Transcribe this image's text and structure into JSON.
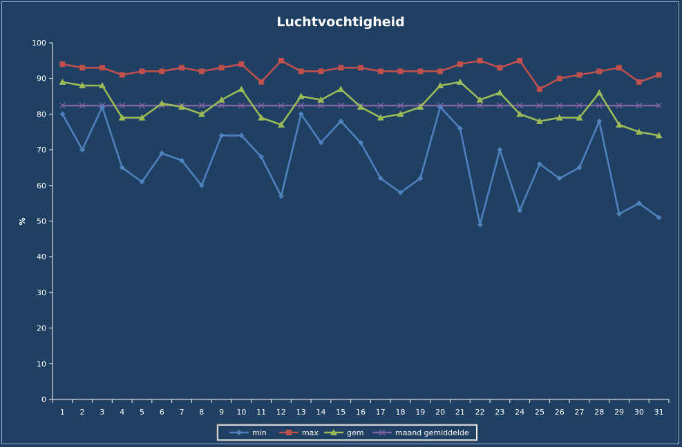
{
  "chart_data": {
    "type": "line",
    "title": "Luchtvochtigheid",
    "xlabel": "",
    "ylabel": "%",
    "ylim": [
      0,
      100
    ],
    "yticks": [
      0,
      10,
      20,
      30,
      40,
      50,
      60,
      70,
      80,
      90,
      100
    ],
    "categories": [
      "1",
      "2",
      "3",
      "4",
      "5",
      "6",
      "7",
      "8",
      "9",
      "10",
      "11",
      "12",
      "13",
      "14",
      "15",
      "16",
      "17",
      "18",
      "19",
      "20",
      "21",
      "22",
      "23",
      "24",
      "25",
      "26",
      "27",
      "28",
      "29",
      "30",
      "31"
    ],
    "grid": false,
    "legend": "bottom",
    "series": [
      {
        "name": "min",
        "color": "#4f81bd",
        "marker": "diamond",
        "values": [
          80,
          70,
          82,
          65,
          61,
          69,
          67,
          60,
          74,
          74,
          68,
          57,
          80,
          72,
          78,
          72,
          62,
          58,
          62,
          82,
          76,
          49,
          70,
          53,
          66,
          62,
          65,
          78,
          52,
          55,
          51
        ]
      },
      {
        "name": "max",
        "color": "#c0504d",
        "marker": "square",
        "values": [
          94,
          93,
          93,
          91,
          92,
          92,
          93,
          92,
          93,
          94,
          89,
          95,
          92,
          92,
          93,
          93,
          92,
          92,
          92,
          92,
          94,
          95,
          93,
          95,
          87,
          90,
          91,
          92,
          93,
          89,
          91
        ]
      },
      {
        "name": "gem",
        "color": "#9bbb59",
        "marker": "triangle",
        "values": [
          89,
          88,
          88,
          79,
          79,
          83,
          82,
          80,
          84,
          87,
          79,
          77,
          85,
          84,
          87,
          82,
          79,
          80,
          82,
          88,
          89,
          84,
          86,
          80,
          78,
          79,
          79,
          86,
          77,
          75,
          74
        ]
      },
      {
        "name": "maand gemiddelde",
        "color": "#8064a2",
        "marker": "x",
        "values": [
          82.4,
          82.4,
          82.4,
          82.4,
          82.4,
          82.4,
          82.4,
          82.4,
          82.4,
          82.4,
          82.4,
          82.4,
          82.4,
          82.4,
          82.4,
          82.4,
          82.4,
          82.4,
          82.4,
          82.4,
          82.4,
          82.4,
          82.4,
          82.4,
          82.4,
          82.4,
          82.4,
          82.4,
          82.4,
          82.4,
          82.4
        ]
      }
    ]
  }
}
